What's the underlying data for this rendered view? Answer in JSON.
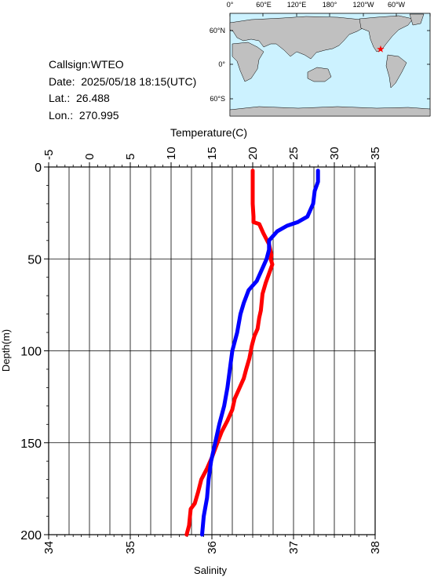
{
  "info": {
    "callsign": "Callsign:WTEO",
    "date": "Date:  2025/05/18 18:15(UTC)",
    "lat": "Lat.:  26.488",
    "lon": "Lon.:  270.995"
  },
  "map": {
    "top_labels": [
      "0°",
      "60°E",
      "120°E",
      "180°",
      "120°W",
      "60°W"
    ],
    "left_labels": [
      "60°N",
      "0°",
      "60°S"
    ],
    "ocean_color": "#ccf2ff",
    "land_color": "#c0c0c0",
    "marker_color": "#ff0000",
    "marker": {
      "lon": 270.995,
      "lat": 26.488
    }
  },
  "chart_data": {
    "type": "line",
    "xlabel_top": "Temperature(C)",
    "xlabel_bottom": "Salinity",
    "ylabel": "Depth(m)",
    "temperature_axis": {
      "range": [
        -5,
        35
      ],
      "ticks": [
        -5,
        0,
        5,
        10,
        15,
        20,
        25,
        30,
        35
      ]
    },
    "salinity_axis": {
      "range": [
        34,
        38
      ],
      "ticks": [
        34,
        35,
        36,
        37,
        38
      ]
    },
    "depth_axis": {
      "range": [
        0,
        200
      ],
      "ticks": [
        0,
        50,
        100,
        150,
        200
      ],
      "inverted": true
    },
    "grid": true,
    "series": [
      {
        "axis": "temperature",
        "color": "#ff0000",
        "points": [
          [
            20.0,
            2
          ],
          [
            20.0,
            10
          ],
          [
            20.0,
            20
          ],
          [
            20.1,
            27
          ],
          [
            20.1,
            30
          ],
          [
            20.8,
            31
          ],
          [
            21.3,
            36
          ],
          [
            22.0,
            42
          ],
          [
            22.3,
            48
          ],
          [
            22.2,
            50
          ],
          [
            22.4,
            53
          ],
          [
            22.0,
            58
          ],
          [
            21.6,
            63
          ],
          [
            21.2,
            69
          ],
          [
            21.0,
            78
          ],
          [
            20.8,
            82
          ],
          [
            20.6,
            88
          ],
          [
            20.2,
            92
          ],
          [
            19.9,
            97
          ],
          [
            19.6,
            104
          ],
          [
            19.2,
            110
          ],
          [
            18.9,
            115
          ],
          [
            18.5,
            119
          ],
          [
            18.2,
            122
          ],
          [
            17.8,
            126
          ],
          [
            17.5,
            132
          ],
          [
            16.9,
            138
          ],
          [
            16.2,
            144
          ],
          [
            15.6,
            151
          ],
          [
            15.0,
            158
          ],
          [
            14.4,
            164
          ],
          [
            13.7,
            170
          ],
          [
            13.3,
            177
          ],
          [
            12.9,
            183
          ],
          [
            12.4,
            186
          ],
          [
            12.2,
            195
          ],
          [
            11.9,
            200
          ]
        ]
      },
      {
        "axis": "salinity",
        "color": "#0000ff",
        "points": [
          [
            37.3,
            2
          ],
          [
            37.3,
            8
          ],
          [
            37.26,
            13
          ],
          [
            37.24,
            20
          ],
          [
            37.17,
            27
          ],
          [
            37.05,
            30
          ],
          [
            36.92,
            32
          ],
          [
            36.8,
            35
          ],
          [
            36.7,
            40
          ],
          [
            36.7,
            45
          ],
          [
            36.67,
            50
          ],
          [
            36.62,
            55
          ],
          [
            36.55,
            62
          ],
          [
            36.45,
            67
          ],
          [
            36.39,
            74
          ],
          [
            36.35,
            80
          ],
          [
            36.31,
            90
          ],
          [
            36.25,
            100
          ],
          [
            36.22,
            110
          ],
          [
            36.19,
            120
          ],
          [
            36.15,
            130
          ],
          [
            36.09,
            140
          ],
          [
            36.04,
            150
          ],
          [
            35.99,
            160
          ],
          [
            35.96,
            170
          ],
          [
            35.94,
            180
          ],
          [
            35.9,
            190
          ],
          [
            35.88,
            200
          ]
        ]
      }
    ]
  }
}
